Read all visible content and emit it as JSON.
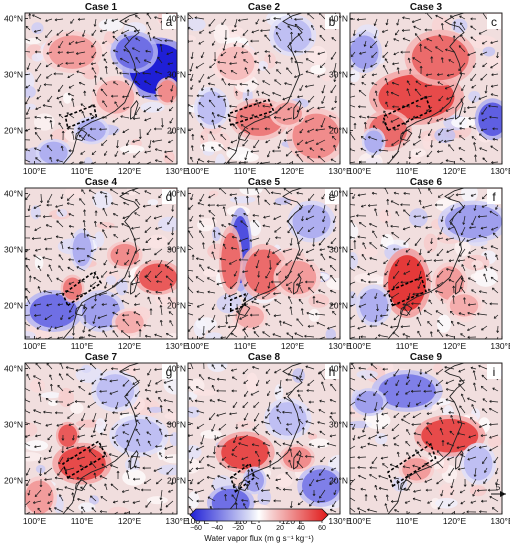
{
  "chart_data": {
    "type": "heatmap",
    "grid": {
      "rows": 3,
      "cols": 3
    },
    "x_ticks": [
      "100°E",
      "110°E",
      "120°E",
      "130°E"
    ],
    "y_ticks": [
      "20°N",
      "30°N",
      "40°N"
    ],
    "x_range": [
      98,
      130
    ],
    "y_range": [
      14,
      41
    ],
    "panels": [
      {
        "title": "Case  1",
        "letter": "a",
        "box": [
          [
            107,
            20.5
          ],
          [
            113,
            22.5
          ],
          [
            112.5,
            24.5
          ],
          [
            106.5,
            22.5
          ]
        ],
        "blobs": [
          {
            "lon": 126,
            "lat": 31,
            "rx": 6,
            "ry": 4.5,
            "value": -70
          },
          {
            "lon": 121,
            "lat": 34,
            "rx": 4,
            "ry": 3,
            "value": -45
          },
          {
            "lon": 108,
            "lat": 34,
            "rx": 5,
            "ry": 3,
            "value": 30
          },
          {
            "lon": 117,
            "lat": 26,
            "rx": 4,
            "ry": 3,
            "value": 25
          },
          {
            "lon": 112,
            "lat": 20,
            "rx": 3,
            "ry": 2,
            "value": -25
          },
          {
            "lon": 104,
            "lat": 16,
            "rx": 3,
            "ry": 2,
            "value": -25
          },
          {
            "lon": 128,
            "lat": 27,
            "rx": 2,
            "ry": 2,
            "value": 35
          }
        ]
      },
      {
        "title": "Case  2",
        "letter": "b",
        "box": [
          [
            107,
            21
          ],
          [
            116,
            23.5
          ],
          [
            115,
            25.5
          ],
          [
            106.5,
            23
          ]
        ],
        "blobs": [
          {
            "lon": 113,
            "lat": 22,
            "rx": 5,
            "ry": 3,
            "value": 40
          },
          {
            "lon": 125,
            "lat": 19,
            "rx": 5,
            "ry": 4,
            "value": 35
          },
          {
            "lon": 119,
            "lat": 23,
            "rx": 3,
            "ry": 2,
            "value": 30
          },
          {
            "lon": 103,
            "lat": 24,
            "rx": 3,
            "ry": 3,
            "value": -20
          },
          {
            "lon": 108,
            "lat": 32,
            "rx": 4,
            "ry": 3,
            "value": 20
          },
          {
            "lon": 120,
            "lat": 37,
            "rx": 4,
            "ry": 3,
            "value": -20
          }
        ]
      },
      {
        "title": "Case  3",
        "letter": "c",
        "box": [
          [
            106,
            20
          ],
          [
            115,
            23.5
          ],
          [
            114,
            26
          ],
          [
            105,
            22.5
          ]
        ],
        "blobs": [
          {
            "lon": 112,
            "lat": 26,
            "rx": 8,
            "ry": 4,
            "value": 55
          },
          {
            "lon": 117,
            "lat": 33,
            "rx": 6,
            "ry": 4,
            "value": 45
          },
          {
            "lon": 106,
            "lat": 20,
            "rx": 4,
            "ry": 3,
            "value": 45
          },
          {
            "lon": 128,
            "lat": 22,
            "rx": 3,
            "ry": 3,
            "value": -50
          },
          {
            "lon": 101,
            "lat": 34,
            "rx": 3,
            "ry": 3,
            "value": -30
          },
          {
            "lon": 103,
            "lat": 18,
            "rx": 2,
            "ry": 2,
            "value": -25
          }
        ]
      },
      {
        "title": "Case  4",
        "letter": "d",
        "box": [
          [
            107,
            20
          ],
          [
            114,
            24
          ],
          [
            112.5,
            26
          ],
          [
            106,
            22
          ]
        ],
        "blobs": [
          {
            "lon": 104,
            "lat": 19,
            "rx": 5,
            "ry": 3,
            "value": -45
          },
          {
            "lon": 126,
            "lat": 25,
            "rx": 4,
            "ry": 2.5,
            "value": 50
          },
          {
            "lon": 114,
            "lat": 19,
            "rx": 4,
            "ry": 3,
            "value": -30
          },
          {
            "lon": 110,
            "lat": 30,
            "rx": 2,
            "ry": 3,
            "value": -25
          },
          {
            "lon": 119,
            "lat": 29,
            "rx": 3,
            "ry": 2,
            "value": 35
          },
          {
            "lon": 108,
            "lat": 23,
            "rx": 2,
            "ry": 2,
            "value": 40
          },
          {
            "lon": 120,
            "lat": 17,
            "rx": 3,
            "ry": 2,
            "value": 25
          }
        ]
      },
      {
        "title": "Case  5",
        "letter": "e",
        "box": [
          [
            107,
            19
          ],
          [
            110,
            20
          ],
          [
            110,
            22
          ],
          [
            107,
            21
          ]
        ],
        "blobs": [
          {
            "lon": 109,
            "lat": 30,
            "rx": 2,
            "ry": 6,
            "value": -55
          },
          {
            "lon": 107,
            "lat": 28,
            "rx": 2,
            "ry": 5,
            "value": 45
          },
          {
            "lon": 114,
            "lat": 26,
            "rx": 4,
            "ry": 4,
            "value": 45
          },
          {
            "lon": 121,
            "lat": 25,
            "rx": 4,
            "ry": 3,
            "value": 30
          },
          {
            "lon": 124,
            "lat": 35,
            "rx": 4,
            "ry": 3,
            "value": -25
          },
          {
            "lon": 111,
            "lat": 18,
            "rx": 3,
            "ry": 2,
            "value": 25
          }
        ]
      },
      {
        "title": "Case  6",
        "letter": "f",
        "box": [
          [
            107,
            20
          ],
          [
            114,
            22.5
          ],
          [
            113,
            25
          ],
          [
            106,
            22.5
          ]
        ],
        "blobs": [
          {
            "lon": 110,
            "lat": 24,
            "rx": 4,
            "ry": 5,
            "value": 60
          },
          {
            "lon": 124,
            "lat": 35,
            "rx": 6,
            "ry": 3,
            "value": -30
          },
          {
            "lon": 103,
            "lat": 20,
            "rx": 3,
            "ry": 3,
            "value": -25
          },
          {
            "lon": 119,
            "lat": 24,
            "rx": 3,
            "ry": 3,
            "value": 30
          },
          {
            "lon": 122,
            "lat": 20,
            "rx": 3,
            "ry": 2,
            "value": 25
          }
        ]
      },
      {
        "title": "Case  7",
        "letter": "g",
        "box": [
          [
            107,
            20.5
          ],
          [
            115,
            24.5
          ],
          [
            113.5,
            27
          ],
          [
            106,
            23
          ]
        ],
        "blobs": [
          {
            "lon": 110,
            "lat": 23,
            "rx": 5,
            "ry": 3,
            "value": 55
          },
          {
            "lon": 107,
            "lat": 28,
            "rx": 2,
            "ry": 2,
            "value": 50
          },
          {
            "lon": 101,
            "lat": 17,
            "rx": 3,
            "ry": 3,
            "value": 30
          },
          {
            "lon": 122,
            "lat": 28,
            "rx": 5,
            "ry": 3,
            "value": -20
          },
          {
            "lon": 117,
            "lat": 36,
            "rx": 4,
            "ry": 3,
            "value": -20
          }
        ]
      },
      {
        "title": "Case  8",
        "letter": "h",
        "box": [
          [
            108,
            18
          ],
          [
            112,
            20.5
          ],
          [
            111,
            23
          ],
          [
            107,
            20.5
          ]
        ],
        "blobs": [
          {
            "lon": 110,
            "lat": 25,
            "rx": 5,
            "ry": 3,
            "value": 55
          },
          {
            "lon": 107,
            "lat": 16,
            "rx": 4,
            "ry": 2.5,
            "value": -45
          },
          {
            "lon": 126,
            "lat": 19,
            "rx": 4,
            "ry": 3,
            "value": -40
          },
          {
            "lon": 121,
            "lat": 24,
            "rx": 3,
            "ry": 2,
            "value": 35
          },
          {
            "lon": 119,
            "lat": 31,
            "rx": 4,
            "ry": 3,
            "value": -20
          },
          {
            "lon": 112,
            "lat": 20,
            "rx": 2,
            "ry": 2,
            "value": -30
          }
        ]
      },
      {
        "title": "Case  9",
        "letter": "i",
        "box": [
          [
            107,
            19
          ],
          [
            116,
            24
          ],
          [
            115,
            26.5
          ],
          [
            106,
            21.5
          ]
        ],
        "blobs": [
          {
            "lon": 119,
            "lat": 28,
            "rx": 6,
            "ry": 3,
            "value": 55
          },
          {
            "lon": 110,
            "lat": 36,
            "rx": 6,
            "ry": 3,
            "value": -40
          },
          {
            "lon": 102,
            "lat": 34,
            "rx": 3,
            "ry": 2,
            "value": -30
          },
          {
            "lon": 125,
            "lat": 23,
            "rx": 3,
            "ry": 3,
            "value": -20
          },
          {
            "lon": 112,
            "lat": 22,
            "rx": 3,
            "ry": 2,
            "value": 30
          }
        ]
      }
    ],
    "colorbar": {
      "ticks": [
        -60,
        -40,
        -20,
        0,
        20,
        40,
        60
      ],
      "range": [
        -70,
        70
      ],
      "title": "Water vapor flux (m g s⁻¹ kg⁻¹)",
      "colors": [
        "#1f1fd6",
        "#ffffff",
        "#e01818"
      ]
    },
    "reference_vector_label": "5"
  }
}
